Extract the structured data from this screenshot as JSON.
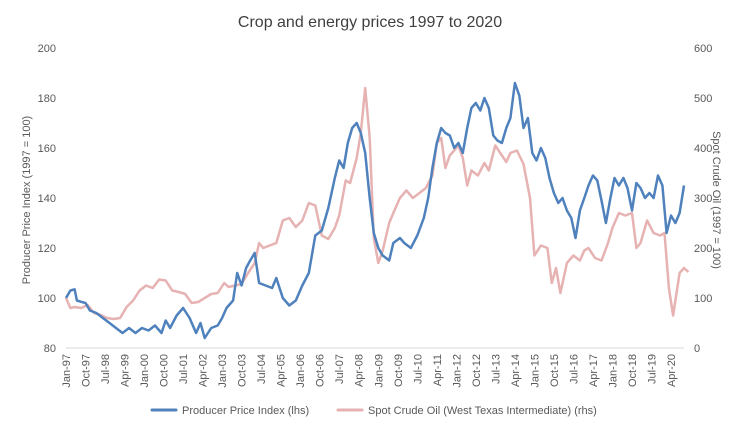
{
  "chart_data": {
    "type": "line",
    "title": "Crop and energy prices 1997 to 2020",
    "ylabel": "Producer Price Index (1997 = 100)",
    "y2label": "Spot Crude Oil (1997 = 100)",
    "ylim": [
      80,
      200
    ],
    "y2lim": [
      0,
      600
    ],
    "yticks": [
      "80",
      "100",
      "120",
      "140",
      "160",
      "180",
      "200"
    ],
    "y2ticks": [
      "0",
      "100",
      "200",
      "300",
      "400",
      "500",
      "600"
    ],
    "xticks": [
      "Jan-97",
      "Oct-97",
      "Jul-98",
      "Apr-99",
      "Jan-00",
      "Oct-00",
      "Jul-01",
      "Apr-02",
      "Jan-03",
      "Oct-03",
      "Jul-04",
      "Apr-05",
      "Jan-06",
      "Oct-06",
      "Jul-07",
      "Apr-08",
      "Jan-09",
      "Oct-09",
      "Jul-10",
      "Apr-11",
      "Jan-12",
      "Oct-12",
      "Jul-13",
      "Apr-14",
      "Jan-15",
      "Oct-15",
      "Jul-16",
      "Apr-17",
      "Jan-18",
      "Oct-18",
      "Jul-19",
      "Apr-20"
    ],
    "x_start": "Jan-97",
    "x_end": "Oct-20",
    "grid": false,
    "legend_position": "bottom",
    "series": [
      {
        "name": "Producer Price Index (lhs)",
        "axis": "left",
        "color": "#4f81bd",
        "points": [
          [
            1997.0,
            100
          ],
          [
            1997.17,
            103
          ],
          [
            1997.33,
            103.5
          ],
          [
            1997.42,
            99
          ],
          [
            1997.58,
            98.5
          ],
          [
            1997.75,
            98
          ],
          [
            1997.92,
            95
          ],
          [
            1998.17,
            94
          ],
          [
            1998.42,
            92
          ],
          [
            1998.67,
            90
          ],
          [
            1998.92,
            88
          ],
          [
            1999.17,
            86
          ],
          [
            1999.42,
            88
          ],
          [
            1999.67,
            86
          ],
          [
            1999.92,
            88
          ],
          [
            2000.17,
            87
          ],
          [
            2000.42,
            89
          ],
          [
            2000.67,
            86
          ],
          [
            2000.83,
            91
          ],
          [
            2001.0,
            88
          ],
          [
            2001.25,
            93
          ],
          [
            2001.5,
            96
          ],
          [
            2001.75,
            92
          ],
          [
            2002.0,
            86
          ],
          [
            2002.17,
            90
          ],
          [
            2002.33,
            84
          ],
          [
            2002.58,
            88
          ],
          [
            2002.83,
            89
          ],
          [
            2003.0,
            92
          ],
          [
            2003.17,
            96
          ],
          [
            2003.42,
            99
          ],
          [
            2003.58,
            110
          ],
          [
            2003.75,
            105
          ],
          [
            2003.92,
            112
          ],
          [
            2004.08,
            115
          ],
          [
            2004.25,
            118
          ],
          [
            2004.42,
            106
          ],
          [
            2004.67,
            105
          ],
          [
            2004.92,
            104
          ],
          [
            2005.08,
            108
          ],
          [
            2005.33,
            100
          ],
          [
            2005.58,
            97
          ],
          [
            2005.83,
            99
          ],
          [
            2006.08,
            105
          ],
          [
            2006.33,
            110
          ],
          [
            2006.58,
            125
          ],
          [
            2006.83,
            127
          ],
          [
            2007.08,
            136
          ],
          [
            2007.33,
            148
          ],
          [
            2007.5,
            155
          ],
          [
            2007.67,
            152
          ],
          [
            2007.83,
            162
          ],
          [
            2008.0,
            168
          ],
          [
            2008.17,
            170
          ],
          [
            2008.33,
            166
          ],
          [
            2008.5,
            158
          ],
          [
            2008.67,
            140
          ],
          [
            2008.83,
            126
          ],
          [
            2009.0,
            120
          ],
          [
            2009.17,
            117
          ],
          [
            2009.42,
            115
          ],
          [
            2009.58,
            122
          ],
          [
            2009.83,
            124
          ],
          [
            2010.0,
            122
          ],
          [
            2010.25,
            120
          ],
          [
            2010.5,
            125
          ],
          [
            2010.75,
            132
          ],
          [
            2010.92,
            140
          ],
          [
            2011.08,
            152
          ],
          [
            2011.25,
            162
          ],
          [
            2011.42,
            168
          ],
          [
            2011.58,
            166
          ],
          [
            2011.75,
            165
          ],
          [
            2011.92,
            160
          ],
          [
            2012.08,
            162
          ],
          [
            2012.25,
            158
          ],
          [
            2012.42,
            168
          ],
          [
            2012.58,
            176
          ],
          [
            2012.75,
            178
          ],
          [
            2012.92,
            175
          ],
          [
            2013.08,
            180
          ],
          [
            2013.25,
            176
          ],
          [
            2013.42,
            165
          ],
          [
            2013.58,
            163
          ],
          [
            2013.75,
            162
          ],
          [
            2013.92,
            168
          ],
          [
            2014.08,
            172
          ],
          [
            2014.25,
            186
          ],
          [
            2014.42,
            181
          ],
          [
            2014.58,
            168
          ],
          [
            2014.75,
            172
          ],
          [
            2014.92,
            158
          ],
          [
            2015.08,
            155
          ],
          [
            2015.25,
            160
          ],
          [
            2015.42,
            156
          ],
          [
            2015.58,
            148
          ],
          [
            2015.75,
            142
          ],
          [
            2015.92,
            138
          ],
          [
            2016.08,
            140
          ],
          [
            2016.25,
            135
          ],
          [
            2016.42,
            132
          ],
          [
            2016.58,
            124
          ],
          [
            2016.75,
            135
          ],
          [
            2016.92,
            140
          ],
          [
            2017.08,
            145
          ],
          [
            2017.25,
            149
          ],
          [
            2017.42,
            147
          ],
          [
            2017.58,
            139
          ],
          [
            2017.75,
            130
          ],
          [
            2017.92,
            140
          ],
          [
            2018.08,
            148
          ],
          [
            2018.25,
            145
          ],
          [
            2018.42,
            148
          ],
          [
            2018.58,
            144
          ],
          [
            2018.75,
            135
          ],
          [
            2018.92,
            146
          ],
          [
            2019.08,
            144
          ],
          [
            2019.25,
            140
          ],
          [
            2019.42,
            142
          ],
          [
            2019.58,
            140
          ],
          [
            2019.75,
            149
          ],
          [
            2019.92,
            145
          ],
          [
            2020.08,
            126
          ],
          [
            2020.25,
            133
          ],
          [
            2020.42,
            130
          ],
          [
            2020.58,
            134
          ],
          [
            2020.75,
            145
          ]
        ]
      },
      {
        "name": "Spot Crude Oil (West Texas Intermediate) (rhs)",
        "axis": "right",
        "color": "#e6b2b2",
        "points": [
          [
            1997.0,
            100
          ],
          [
            1997.17,
            80
          ],
          [
            1997.33,
            82
          ],
          [
            1997.58,
            80
          ],
          [
            1997.83,
            86
          ],
          [
            1998.08,
            70
          ],
          [
            1998.33,
            66
          ],
          [
            1998.58,
            60
          ],
          [
            1998.83,
            58
          ],
          [
            1999.08,
            60
          ],
          [
            1999.33,
            82
          ],
          [
            1999.58,
            95
          ],
          [
            1999.83,
            115
          ],
          [
            2000.08,
            125
          ],
          [
            2000.33,
            120
          ],
          [
            2000.58,
            137
          ],
          [
            2000.83,
            135
          ],
          [
            2001.08,
            115
          ],
          [
            2001.33,
            112
          ],
          [
            2001.58,
            108
          ],
          [
            2001.83,
            90
          ],
          [
            2002.08,
            92
          ],
          [
            2002.33,
            100
          ],
          [
            2002.58,
            108
          ],
          [
            2002.83,
            110
          ],
          [
            2003.08,
            130
          ],
          [
            2003.25,
            122
          ],
          [
            2003.5,
            125
          ],
          [
            2003.75,
            128
          ],
          [
            2004.0,
            150
          ],
          [
            2004.25,
            170
          ],
          [
            2004.42,
            210
          ],
          [
            2004.58,
            200
          ],
          [
            2004.83,
            205
          ],
          [
            2005.08,
            210
          ],
          [
            2005.33,
            255
          ],
          [
            2005.58,
            260
          ],
          [
            2005.83,
            242
          ],
          [
            2006.08,
            255
          ],
          [
            2006.33,
            290
          ],
          [
            2006.58,
            285
          ],
          [
            2006.83,
            225
          ],
          [
            2007.08,
            218
          ],
          [
            2007.33,
            240
          ],
          [
            2007.5,
            265
          ],
          [
            2007.75,
            335
          ],
          [
            2007.92,
            330
          ],
          [
            2008.17,
            380
          ],
          [
            2008.33,
            430
          ],
          [
            2008.5,
            520
          ],
          [
            2008.67,
            420
          ],
          [
            2008.83,
            220
          ],
          [
            2009.0,
            170
          ],
          [
            2009.17,
            195
          ],
          [
            2009.42,
            250
          ],
          [
            2009.58,
            270
          ],
          [
            2009.83,
            300
          ],
          [
            2010.08,
            315
          ],
          [
            2010.33,
            300
          ],
          [
            2010.58,
            310
          ],
          [
            2010.83,
            320
          ],
          [
            2011.08,
            345
          ],
          [
            2011.25,
            410
          ],
          [
            2011.42,
            420
          ],
          [
            2011.58,
            360
          ],
          [
            2011.75,
            385
          ],
          [
            2011.92,
            395
          ],
          [
            2012.08,
            405
          ],
          [
            2012.25,
            380
          ],
          [
            2012.42,
            325
          ],
          [
            2012.58,
            355
          ],
          [
            2012.83,
            345
          ],
          [
            2013.08,
            370
          ],
          [
            2013.25,
            355
          ],
          [
            2013.5,
            405
          ],
          [
            2013.75,
            385
          ],
          [
            2013.92,
            372
          ],
          [
            2014.08,
            390
          ],
          [
            2014.33,
            395
          ],
          [
            2014.58,
            368
          ],
          [
            2014.83,
            300
          ],
          [
            2015.0,
            185
          ],
          [
            2015.25,
            205
          ],
          [
            2015.5,
            200
          ],
          [
            2015.67,
            130
          ],
          [
            2015.83,
            160
          ],
          [
            2016.0,
            110
          ],
          [
            2016.25,
            170
          ],
          [
            2016.5,
            185
          ],
          [
            2016.75,
            175
          ],
          [
            2016.92,
            195
          ],
          [
            2017.08,
            200
          ],
          [
            2017.33,
            180
          ],
          [
            2017.58,
            175
          ],
          [
            2017.83,
            210
          ],
          [
            2018.0,
            240
          ],
          [
            2018.25,
            270
          ],
          [
            2018.5,
            265
          ],
          [
            2018.75,
            270
          ],
          [
            2018.92,
            200
          ],
          [
            2019.08,
            210
          ],
          [
            2019.33,
            255
          ],
          [
            2019.58,
            230
          ],
          [
            2019.83,
            225
          ],
          [
            2020.0,
            230
          ],
          [
            2020.17,
            120
          ],
          [
            2020.33,
            65
          ],
          [
            2020.58,
            150
          ],
          [
            2020.75,
            160
          ],
          [
            2020.92,
            152
          ]
        ]
      }
    ]
  }
}
